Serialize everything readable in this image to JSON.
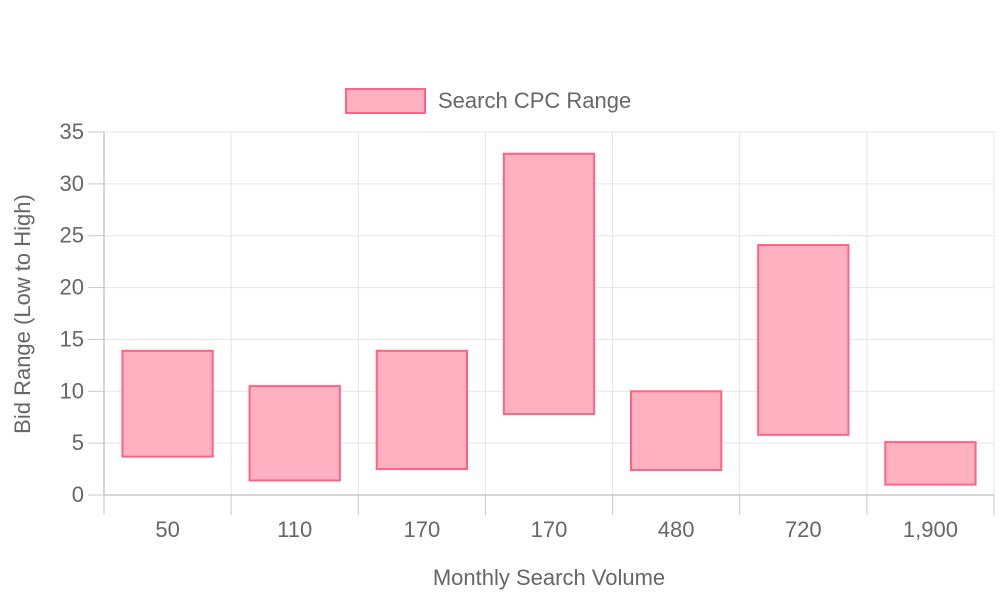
{
  "chart_data": {
    "type": "bar",
    "subtype": "floating-range",
    "categories": [
      "50",
      "110",
      "170",
      "170",
      "480",
      "720",
      "1,900"
    ],
    "series": [
      {
        "name": "Search CPC Range",
        "ranges": [
          [
            3.7,
            13.9
          ],
          [
            1.4,
            10.5
          ],
          [
            2.5,
            13.9
          ],
          [
            7.8,
            32.9
          ],
          [
            2.4,
            10.0
          ],
          [
            5.8,
            24.1
          ],
          [
            1.0,
            5.1
          ]
        ]
      }
    ],
    "xlabel": "Monthly Search Volume",
    "ylabel": "Bid Range (Low to High)",
    "ylim": [
      0,
      35
    ],
    "yticks": [
      0,
      5,
      10,
      15,
      20,
      25,
      30,
      35
    ],
    "grid": true,
    "legend_position": "top",
    "colors": {
      "fill": "#ffb1c1",
      "stroke": "#ff6384",
      "grid": "#e5e5e5",
      "axis": "#c8c8c8",
      "text": "#666666"
    }
  }
}
